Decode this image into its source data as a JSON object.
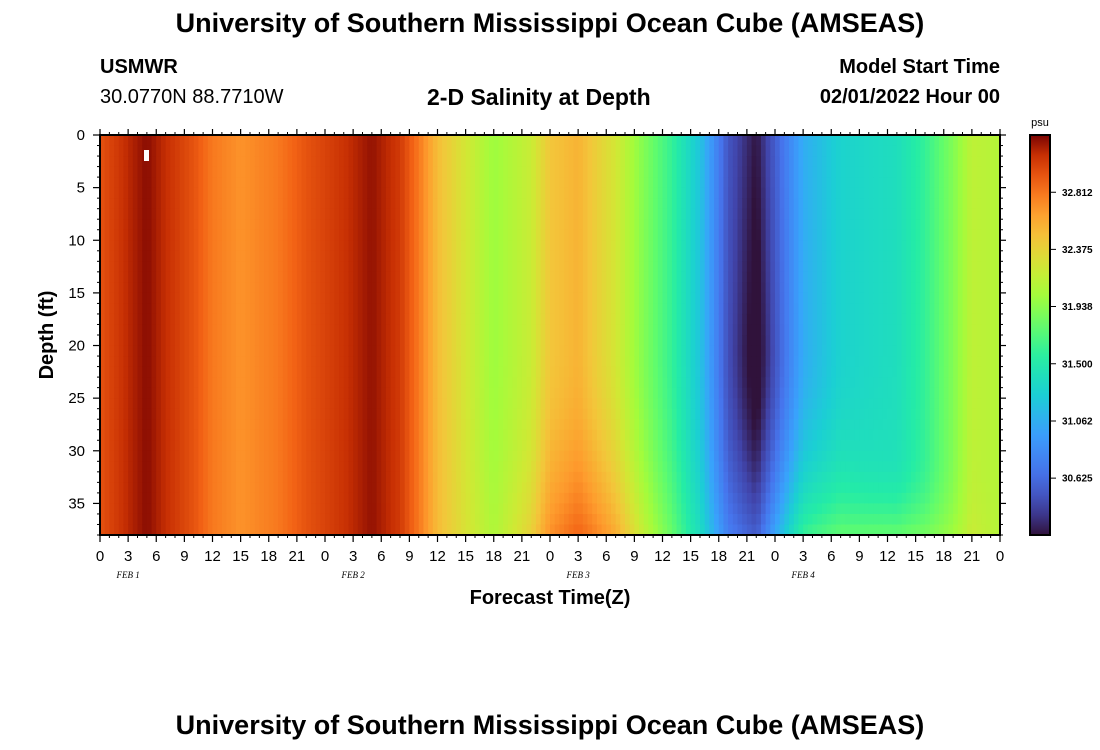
{
  "header": {
    "title": "University of Southern Mississippi Ocean Cube (AMSEAS)",
    "station": "USMWR",
    "coords": "30.0770N  88.7710W",
    "plot_title": "2-D Salinity at Depth",
    "model_start_label": "Model Start Time",
    "model_start_value": "02/01/2022 Hour 00"
  },
  "footer": {
    "title": "University of Southern Mississippi Ocean Cube (AMSEAS)"
  },
  "chart_data": {
    "type": "heatmap",
    "title": "2-D Salinity at Depth",
    "xlabel": "Forecast Time(Z)",
    "ylabel": "Depth (ft)",
    "units": "psu",
    "x_tick_labels": [
      "0",
      "3",
      "6",
      "9",
      "12",
      "15",
      "18",
      "21",
      "0",
      "3",
      "6",
      "9",
      "12",
      "15",
      "18",
      "21",
      "0",
      "3",
      "6",
      "9",
      "12",
      "15",
      "18",
      "21",
      "0",
      "3",
      "6",
      "9",
      "12",
      "15",
      "18",
      "21",
      "0"
    ],
    "day_labels": [
      "FEB 1",
      "FEB 2",
      "FEB 3",
      "FEB 4"
    ],
    "y_tick_labels": [
      "0",
      "5",
      "10",
      "15",
      "20",
      "25",
      "30",
      "35"
    ],
    "y_ticks": [
      0,
      5,
      10,
      15,
      20,
      25,
      30,
      35
    ],
    "xlim": [
      0,
      96
    ],
    "ylim": [
      38,
      0
    ],
    "colorbar": {
      "ticks": [
        "32.812",
        "32.375",
        "31.938",
        "31.500",
        "31.062",
        "30.625"
      ],
      "tick_values": [
        32.812,
        32.375,
        31.938,
        31.5,
        31.062,
        30.625
      ],
      "range": [
        30.19,
        33.25
      ]
    },
    "surface_salinity_by_hour": [
      [
        0,
        32.95
      ],
      [
        3,
        33.12
      ],
      [
        5,
        33.22
      ],
      [
        7,
        33.1
      ],
      [
        10,
        32.95
      ],
      [
        12,
        32.8
      ],
      [
        15,
        32.7
      ],
      [
        19,
        32.8
      ],
      [
        22,
        32.95
      ],
      [
        26,
        33.08
      ],
      [
        29,
        33.2
      ],
      [
        32,
        33.05
      ],
      [
        34,
        32.8
      ],
      [
        36,
        32.5
      ],
      [
        39,
        32.25
      ],
      [
        42,
        32.0
      ],
      [
        46,
        32.2
      ],
      [
        48,
        32.45
      ],
      [
        51,
        32.55
      ],
      [
        55,
        32.25
      ],
      [
        58,
        31.9
      ],
      [
        61,
        31.6
      ],
      [
        64,
        31.2
      ],
      [
        67,
        30.5
      ],
      [
        70,
        30.2
      ],
      [
        72,
        30.55
      ],
      [
        75,
        31.05
      ],
      [
        79,
        31.3
      ],
      [
        82,
        31.35
      ],
      [
        85,
        31.4
      ],
      [
        88,
        31.6
      ],
      [
        91,
        31.9
      ],
      [
        93,
        32.15
      ],
      [
        96,
        32.1
      ]
    ]
  }
}
